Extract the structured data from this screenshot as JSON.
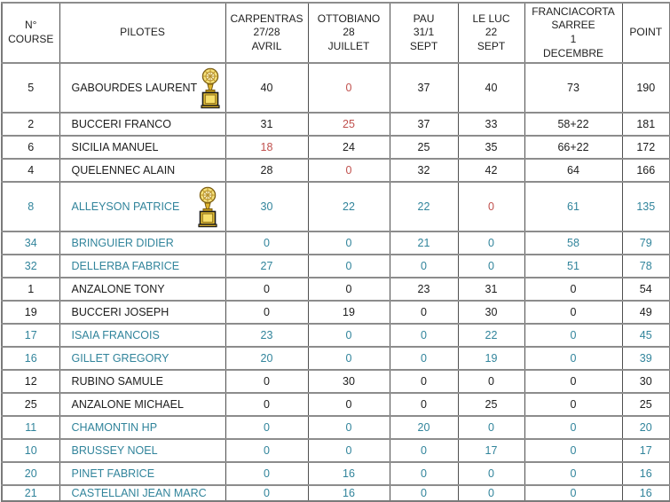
{
  "colors": {
    "blue": "#31849b",
    "red": "#c0504d",
    "black": "#1d1d1d"
  },
  "table": {
    "headers": [
      {
        "id": "num-course",
        "lines": [
          "N°",
          "COURSE"
        ]
      },
      {
        "id": "pilotes",
        "lines": [
          "PILOTES"
        ]
      },
      {
        "id": "carpentras",
        "lines": [
          "CARPENTRAS",
          "27/28",
          "AVRIL"
        ]
      },
      {
        "id": "ottobiano",
        "lines": [
          "OTTOBIANO",
          "28",
          "JUILLET"
        ]
      },
      {
        "id": "pau",
        "lines": [
          "PAU",
          "31/1",
          "SEPT"
        ]
      },
      {
        "id": "le-luc",
        "lines": [
          "LE LUC",
          "22",
          "SEPT"
        ]
      },
      {
        "id": "franciacorta",
        "lines": [
          "FRANCIACORTA",
          "SARREE",
          "1",
          "DECEMBRE"
        ]
      },
      {
        "id": "point",
        "lines": [
          "POINT"
        ]
      }
    ],
    "rows": [
      {
        "num": "5",
        "pilot": "GABOURDES LAURENT",
        "trophy": true,
        "color": "black",
        "values": [
          "40",
          "0",
          "37",
          "40",
          "73"
        ],
        "red_indices": [
          1
        ],
        "point": "190"
      },
      {
        "num": "2",
        "pilot": "BUCCERI FRANCO",
        "trophy": false,
        "color": "black",
        "values": [
          "31",
          "25",
          "37",
          "33",
          "58+22"
        ],
        "red_indices": [
          1
        ],
        "point": "181"
      },
      {
        "num": "6",
        "pilot": "SICILIA MANUEL",
        "trophy": false,
        "color": "black",
        "values": [
          "18",
          "24",
          "25",
          "35",
          "66+22"
        ],
        "red_indices": [
          0
        ],
        "point": "172"
      },
      {
        "num": "4",
        "pilot": "QUELENNEC ALAIN",
        "trophy": false,
        "color": "black",
        "values": [
          "28",
          "0",
          "32",
          "42",
          "64"
        ],
        "red_indices": [
          1
        ],
        "point": "166"
      },
      {
        "num": "8",
        "pilot": "ALLEYSON PATRICE",
        "trophy": true,
        "color": "blue",
        "values": [
          "30",
          "22",
          "22",
          "0",
          "61"
        ],
        "red_indices": [
          3
        ],
        "point": "135"
      },
      {
        "num": "34",
        "pilot": "BRINGUIER DIDIER",
        "trophy": false,
        "color": "blue",
        "values": [
          "0",
          "0",
          "21",
          "0",
          "58"
        ],
        "red_indices": [],
        "point": "79"
      },
      {
        "num": "32",
        "pilot": "DELLERBA FABRICE",
        "trophy": false,
        "color": "blue",
        "values": [
          "27",
          "0",
          "0",
          "0",
          "51"
        ],
        "red_indices": [],
        "point": "78"
      },
      {
        "num": "1",
        "pilot": "ANZALONE TONY",
        "trophy": false,
        "color": "black",
        "values": [
          "0",
          "0",
          "23",
          "31",
          "0"
        ],
        "red_indices": [],
        "point": "54"
      },
      {
        "num": "19",
        "pilot": "BUCCERI JOSEPH",
        "trophy": false,
        "color": "black",
        "values": [
          "0",
          "19",
          "0",
          "30",
          "0"
        ],
        "red_indices": [],
        "point": "49"
      },
      {
        "num": "17",
        "pilot": "ISAIA FRANCOIS",
        "trophy": false,
        "color": "blue",
        "values": [
          "23",
          "0",
          "0",
          "22",
          "0"
        ],
        "red_indices": [],
        "point": "45"
      },
      {
        "num": "16",
        "pilot": "GILLET GREGORY",
        "trophy": false,
        "color": "blue",
        "values": [
          "20",
          "0",
          "0",
          "19",
          "0"
        ],
        "red_indices": [],
        "point": "39"
      },
      {
        "num": "12",
        "pilot": "RUBINO SAMULE",
        "trophy": false,
        "color": "black",
        "values": [
          "0",
          "30",
          "0",
          "0",
          "0"
        ],
        "red_indices": [],
        "point": "30"
      },
      {
        "num": "25",
        "pilot": "ANZALONE MICHAEL",
        "trophy": false,
        "color": "black",
        "values": [
          "0",
          "0",
          "0",
          "25",
          "0"
        ],
        "red_indices": [],
        "point": "25"
      },
      {
        "num": "11",
        "pilot": "CHAMONTIN HP",
        "trophy": false,
        "color": "blue",
        "values": [
          "0",
          "0",
          "20",
          "0",
          "0"
        ],
        "red_indices": [],
        "point": "20"
      },
      {
        "num": "10",
        "pilot": "BRUSSEY NOEL",
        "trophy": false,
        "color": "blue",
        "values": [
          "0",
          "0",
          "0",
          "17",
          "0"
        ],
        "red_indices": [],
        "point": "17"
      },
      {
        "num": "20",
        "pilot": "PINET FABRICE",
        "trophy": false,
        "color": "blue",
        "values": [
          "0",
          "16",
          "0",
          "0",
          "0"
        ],
        "red_indices": [],
        "point": "16"
      },
      {
        "num": "21",
        "pilot": "CASTELLANI JEAN MARC",
        "trophy": false,
        "color": "blue",
        "values": [
          "0",
          "16",
          "0",
          "0",
          "0"
        ],
        "red_indices": [],
        "point": "16"
      }
    ]
  },
  "icons": {
    "trophy": "trophy-icon"
  }
}
